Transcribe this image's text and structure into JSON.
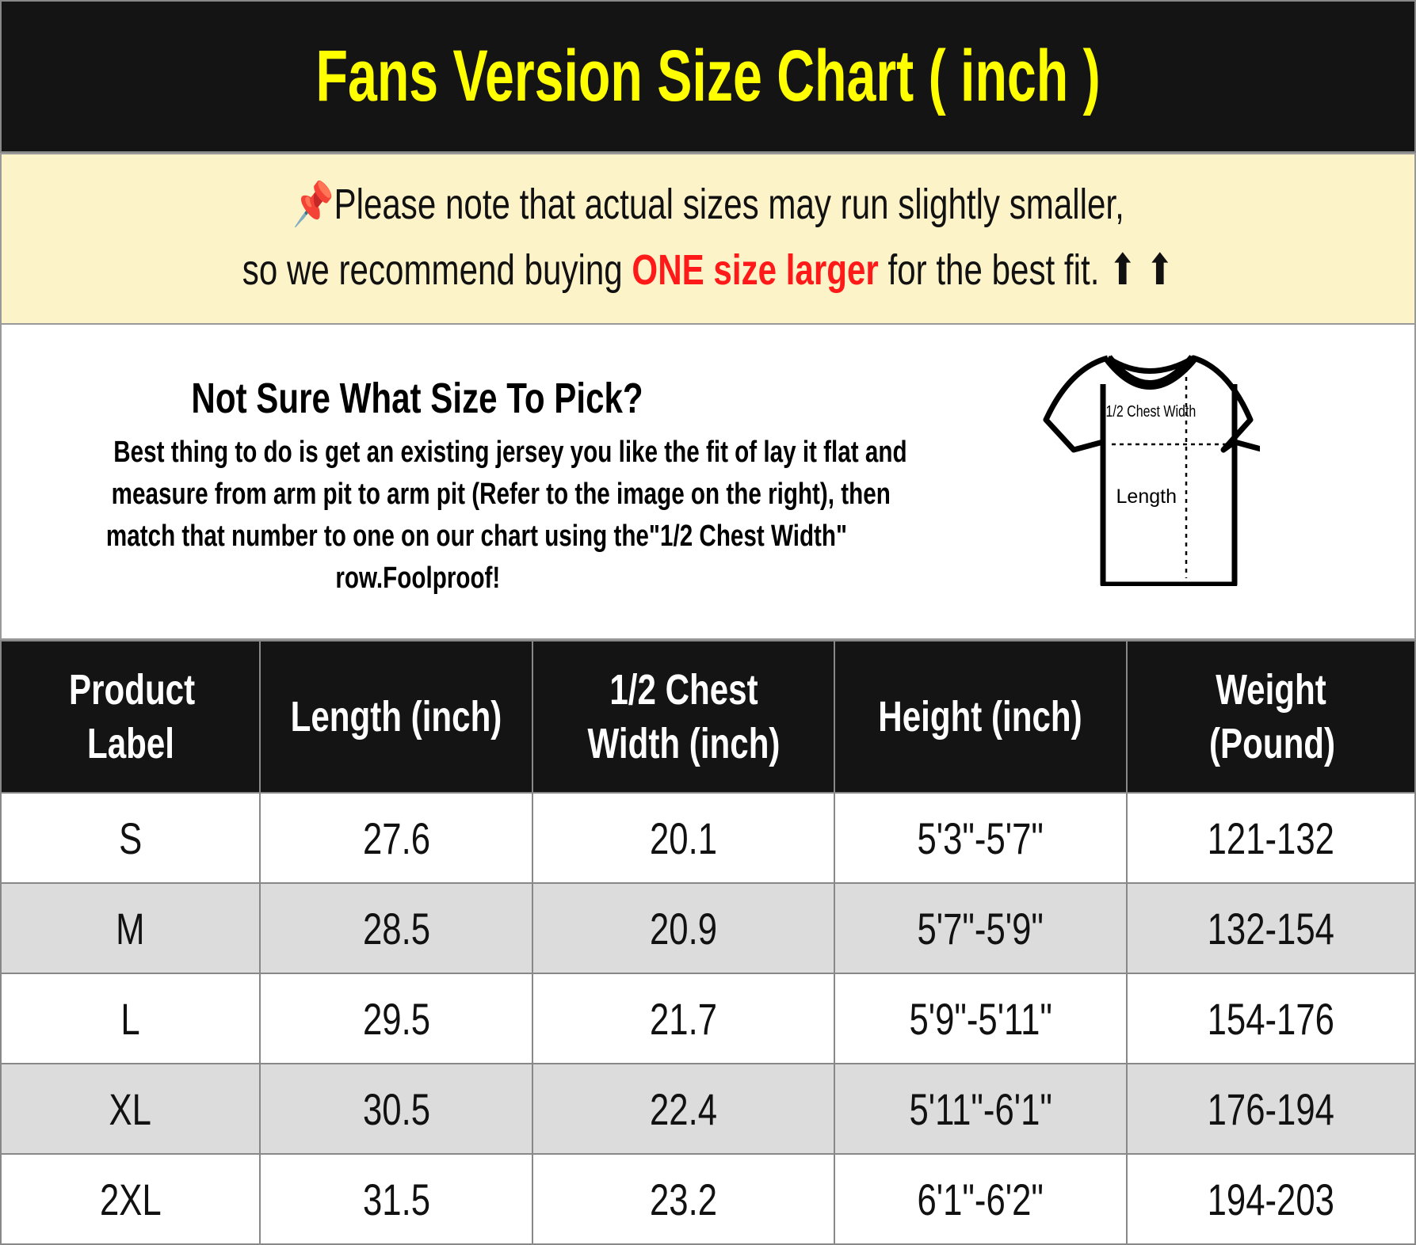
{
  "title": "Fans Version Size Chart ( inch )",
  "note": {
    "line1": "Please note that actual sizes may run slightly smaller,",
    "line2_pre": "so we recommend buying ",
    "line2_highlight": "ONE size larger",
    "line2_post": " for the best fit. ⬆ ⬆",
    "pin_icon": "pushpin-icon",
    "highlight_color": "#ff1a1a"
  },
  "guide": {
    "heading": "Not Sure What Size To Pick?",
    "lines": [
      "Best thing to do is get an existing jersey you like the fit of lay it flat and",
      "measure from arm pit to arm pit (Refer to the image on the right), then",
      "match that number to one on our chart using the\"1/2 Chest Width\"",
      "row.Foolproof!"
    ],
    "diagram": {
      "chest_label": "1/2 Chest Width",
      "length_label": "Length"
    }
  },
  "table": {
    "headers": [
      "Product Label",
      "Length (inch)",
      "1/2 Chest Width (inch)",
      "Height (inch)",
      "Weight (Pound)"
    ],
    "rows": [
      [
        "S",
        "27.6",
        "20.1",
        "5'3\"-5'7\"",
        "121-132"
      ],
      [
        "M",
        "28.5",
        "20.9",
        "5'7\"-5'9\"",
        "132-154"
      ],
      [
        "L",
        "29.5",
        "21.7",
        "5'9\"-5'11\"",
        "154-176"
      ],
      [
        "XL",
        "30.5",
        "22.4",
        "5'11\"-6'1\"",
        "176-194"
      ],
      [
        "2XL",
        "31.5",
        "23.2",
        "6'1\"-6'2\"",
        "194-203"
      ]
    ]
  }
}
